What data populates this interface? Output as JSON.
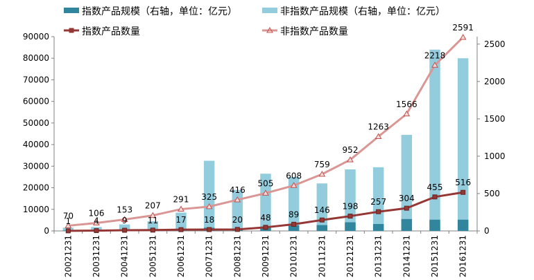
{
  "chart_data": {
    "type": "bar",
    "categories": [
      "20021231",
      "20031231",
      "20041231",
      "20051231",
      "20061231",
      "20071231",
      "20081231",
      "20091231",
      "20101231",
      "20111231",
      "20121231",
      "20131231",
      "20141231",
      "20151231",
      "20161231"
    ],
    "left_axis": {
      "ylim": [
        0,
        90000
      ],
      "ticks": [
        0,
        10000,
        20000,
        30000,
        40000,
        50000,
        60000,
        70000,
        80000,
        90000
      ]
    },
    "right_axis": {
      "ylim": [
        0,
        2600
      ],
      "ticks": [
        0,
        500,
        1000,
        1500,
        2000,
        2500
      ]
    },
    "series": [
      {
        "name": "指数产品规模（右轴，单位：亿元）",
        "kind": "bar",
        "color": "#31859c",
        "values": [
          200,
          300,
          400,
          500,
          700,
          1500,
          1000,
          2000,
          2600,
          2700,
          4000,
          3200,
          5500,
          5200,
          5200
        ]
      },
      {
        "name": "非指数产品规模（右轴，单位：亿元）",
        "kind": "bar",
        "color": "#93cddd",
        "values": [
          1500,
          1800,
          3000,
          4500,
          8500,
          32500,
          19000,
          26500,
          25000,
          22000,
          28500,
          29500,
          44500,
          84000,
          80000
        ]
      },
      {
        "name": "指数产品数量",
        "kind": "line",
        "color": "#953735",
        "marker": "square",
        "values": [
          1,
          4,
          9,
          11,
          17,
          18,
          20,
          48,
          89,
          146,
          198,
          257,
          304,
          455,
          516
        ]
      },
      {
        "name": "非指数产品数量",
        "kind": "line",
        "color": "#d99694",
        "marker": "triangle",
        "values": [
          70,
          106,
          153,
          207,
          291,
          325,
          416,
          505,
          608,
          759,
          952,
          1263,
          1566,
          2218,
          2591
        ]
      }
    ],
    "data_labels": {
      "index_count": [
        "1",
        "4",
        "9",
        "11",
        "17",
        "18",
        "20",
        "48",
        "89",
        "146",
        "198",
        "257",
        "304",
        "455",
        "516"
      ],
      "non_index_count": [
        "70",
        "106",
        "153",
        "207",
        "291",
        "325",
        "416",
        "505",
        "608",
        "759",
        "952",
        "1263",
        "1566",
        "2218",
        "2591"
      ]
    },
    "grid": false,
    "legend_position": "top"
  },
  "legend": {
    "bar_index": "指数产品规模（右轴，单位：亿元）",
    "bar_nonindex": "非指数产品规模（右轴，单位：亿元）",
    "line_index": "指数产品数量",
    "line_nonindex": "非指数产品数量"
  }
}
